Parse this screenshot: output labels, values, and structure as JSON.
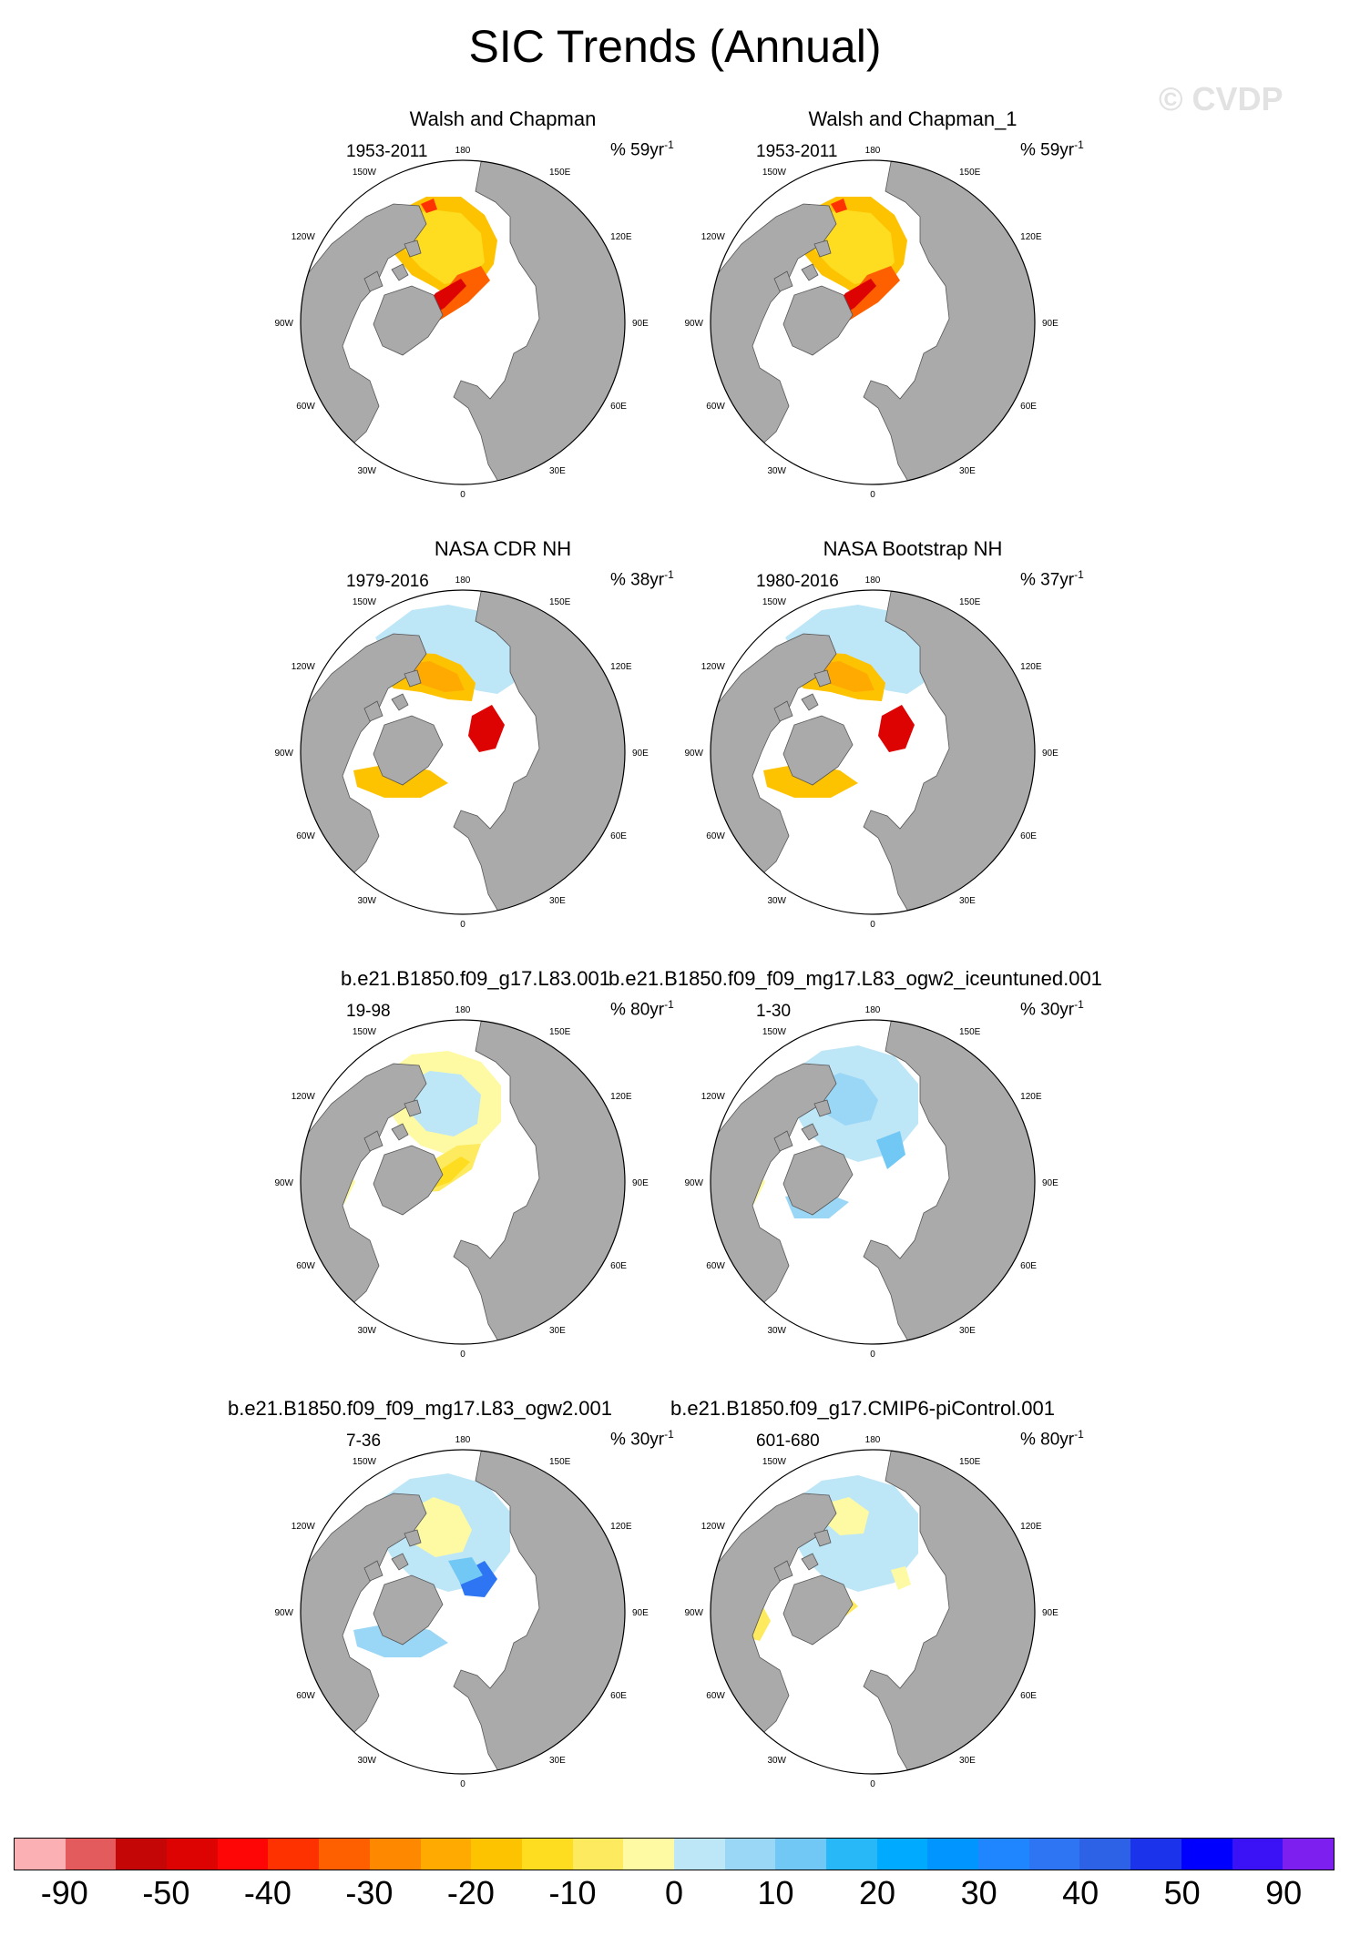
{
  "title": "SIC Trends (Annual)",
  "watermark": "© CVDP",
  "map_labels": {
    "top": "180",
    "bottom": "0",
    "left": "90W",
    "right": "90E",
    "p150w": "150W",
    "p150e": "150E",
    "p120w": "120W",
    "p120e": "120E",
    "p60w": "60W",
    "p60e": "60E",
    "p30w": "30W",
    "p30e": "30E"
  },
  "panels": [
    {
      "title": "Walsh and Chapman",
      "left_string": "1953-2011",
      "right_string": "% 59yr",
      "right_exp": "-1",
      "field": "decline_obs_old"
    },
    {
      "title": "Walsh and Chapman_1",
      "left_string": "1953-2011",
      "right_string": "% 59yr",
      "right_exp": "-1",
      "field": "decline_obs_old"
    },
    {
      "title": "NASA CDR NH",
      "left_string": "1979-2016",
      "right_string": "% 38yr",
      "right_exp": "-1",
      "field": "decline_sat"
    },
    {
      "title": "NASA Bootstrap NH",
      "left_string": "1980-2016",
      "right_string": "% 37yr",
      "right_exp": "-1",
      "field": "decline_sat"
    },
    {
      "title": "b.e21.B1850.f09_g17.L83.001",
      "left_string": "19-98",
      "right_string": "% 80yr",
      "right_exp": "-1",
      "field": "weak_yellow"
    },
    {
      "title": "b.e21.B1850.f09_f09_mg17.L83_ogw2_iceuntuned.001",
      "left_string": "1-30",
      "right_string": "% 30yr",
      "right_exp": "-1",
      "field": "weak_blue"
    },
    {
      "title": "b.e21.B1850.f09_f09_mg17.L83_ogw2.001",
      "left_string": "7-36",
      "right_string": "% 30yr",
      "right_exp": "-1",
      "field": "weak_blue_strong"
    },
    {
      "title": "b.e21.B1850.f09_g17.CMIP6-piControl.001",
      "left_string": "601-680",
      "right_string": "% 80yr",
      "right_exp": "-1",
      "field": "weak_mixed"
    }
  ],
  "colorbar": {
    "colors": [
      "#fbb1b4",
      "#e35b5d",
      "#c50606",
      "#de0303",
      "#fe0606",
      "#fe3200",
      "#fe6000",
      "#fe8800",
      "#feaa00",
      "#fec300",
      "#fedc20",
      "#feea5e",
      "#fefaa4",
      "#bde6f7",
      "#9ad6f5",
      "#72c8f5",
      "#28b8f7",
      "#00abff",
      "#0095ff",
      "#1f86ff",
      "#2e75f3",
      "#2d62e6",
      "#1c33ec",
      "#0000ff",
      "#3b11f5",
      "#7d20ef"
    ],
    "labels": [
      "-90",
      "-50",
      "-40",
      "-30",
      "-20",
      "-10",
      "0",
      "10",
      "20",
      "30",
      "40",
      "50",
      "90"
    ]
  }
}
